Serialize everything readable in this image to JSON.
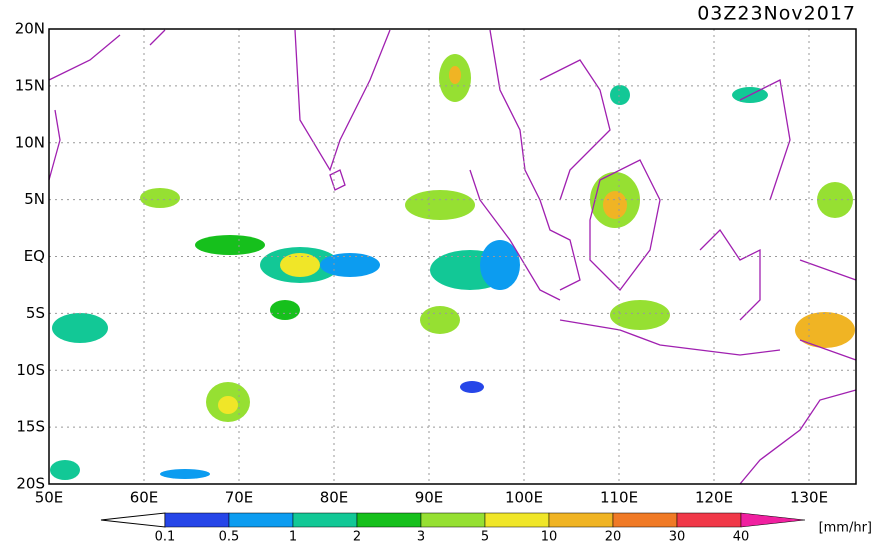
{
  "header": {
    "title": "03Z23Nov2017"
  },
  "map": {
    "lat_labels": [
      "20N",
      "15N",
      "10N",
      "5N",
      "EQ",
      "5S",
      "10S",
      "15S",
      "20S"
    ],
    "lon_labels": [
      "50E",
      "60E",
      "70E",
      "80E",
      "90E",
      "100E",
      "110E",
      "120E",
      "130E"
    ]
  },
  "colorbar": {
    "labels": [
      "0.1",
      "0.5",
      "1",
      "2",
      "3",
      "5",
      "10",
      "20",
      "30",
      "40"
    ],
    "colors": [
      "#2646e8",
      "#0c9cf0",
      "#12c896",
      "#16c01c",
      "#96e032",
      "#f0e628",
      "#f0b424",
      "#f07a26",
      "#f03848",
      "#f020a0"
    ],
    "unit": "[mm/hr]"
  }
}
